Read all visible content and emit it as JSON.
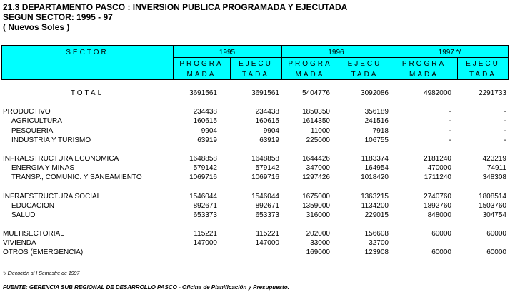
{
  "header": {
    "title": "21.3  DEPARTAMENTO  PASCO : INVERSION PUBLICA PROGRAMADA Y EJECUTADA",
    "subtitle": "SEGUN SECTOR: 1995 - 97",
    "units": "( Nuevos Soles )"
  },
  "table": {
    "columns": {
      "sector": "SECTOR",
      "years": [
        "1995",
        "1996",
        "1997  */"
      ],
      "sub": [
        [
          "PROGRA",
          "MADA"
        ],
        [
          "EJECU",
          "TADA"
        ]
      ]
    },
    "rows": [
      {
        "label": "TOTAL",
        "cells": [
          3691561,
          3691561,
          5404776,
          3092086,
          4982000,
          2291733
        ]
      },
      {
        "label": "PRODUCTIVO",
        "cells": [
          234438,
          234438,
          1850350,
          356189,
          "-",
          "-"
        ]
      },
      {
        "label": "AGRICULTURA",
        "cells": [
          160615,
          160615,
          1614350,
          241516,
          "-",
          "-"
        ]
      },
      {
        "label": "PESQUERIA",
        "cells": [
          9904,
          9904,
          11000,
          7918,
          "-",
          "-"
        ]
      },
      {
        "label": "INDUSTRIA Y TURISMO",
        "cells": [
          63919,
          63919,
          225000,
          106755,
          "-",
          "-"
        ]
      },
      {
        "label": "INFRAESTRUCTURA ECONOMICA",
        "cells": [
          1648858,
          1648858,
          1644426,
          1183374,
          2181240,
          423219
        ]
      },
      {
        "label": "ENERGIA Y MINAS",
        "cells": [
          579142,
          579142,
          347000,
          164954,
          470000,
          74911
        ]
      },
      {
        "label": "TRANSP., COMUNIC. Y SANEAMIENTO",
        "cells": [
          1069716,
          1069716,
          1297426,
          1018420,
          1711240,
          348308
        ]
      },
      {
        "label": "INFRAESTRUCTURA SOCIAL",
        "cells": [
          1546044,
          1546044,
          1675000,
          1363215,
          2740760,
          1808514
        ]
      },
      {
        "label": "EDUCACION",
        "cells": [
          892671,
          892671,
          1359000,
          1134200,
          1892760,
          1503760
        ]
      },
      {
        "label": "SALUD",
        "cells": [
          653373,
          653373,
          316000,
          229015,
          848000,
          304754
        ]
      },
      {
        "label": "MULTISECTORIAL",
        "cells": [
          115221,
          115221,
          202000,
          156608,
          60000,
          60000
        ]
      },
      {
        "label": "VIVIENDA",
        "cells": [
          147000,
          147000,
          33000,
          32700,
          null,
          null
        ]
      },
      {
        "label": "OTROS (EMERGENCIA)",
        "cells": [
          null,
          null,
          169000,
          123908,
          60000,
          60000
        ]
      }
    ]
  },
  "footnote": "*/  Ejecución al I Semestre de 1997",
  "source": "FUENTE: GERENCIA SUB REGIONAL DE DESARROLLO PASCO - Oficina de Planificación y Presupuesto."
}
